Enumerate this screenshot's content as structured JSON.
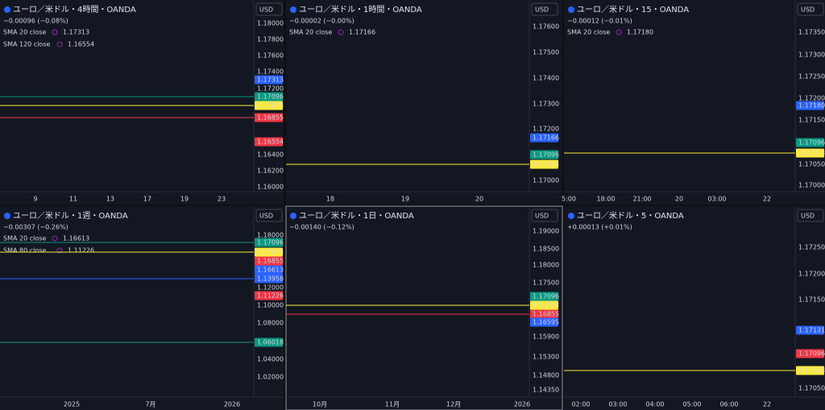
{
  "panels": [
    {
      "title": "ユーロ／米ドル・4時間・OANDA",
      "change": "−0.00096 (−0.08%)",
      "change_color": "#26a69a",
      "currency": "USD",
      "indicators": [
        {
          "label": "SMA 20 close",
          "value": "1.17313",
          "color": "#2962ff"
        },
        {
          "label": "SMA 120 close",
          "value": "1.16554",
          "color": "#f23645"
        }
      ],
      "price_axis": [
        "1.18000",
        "1.17800",
        "1.17600",
        "1.17400",
        "1.17200",
        "1.16400",
        "1.16200",
        "1.16000"
      ],
      "price_tags": [
        {
          "label": "1.17313",
          "color": "#2962ff"
        },
        {
          "label": "1.17096",
          "color": "#089981"
        },
        {
          "label": "1.17073",
          "color": "#ffeb3b"
        },
        {
          "label": "1.16855",
          "color": "#f23645"
        },
        {
          "label": "1.16554",
          "color": "#f23645"
        }
      ],
      "time_axis": [
        "9",
        "11",
        "13",
        "17",
        "19",
        "23"
      ]
    },
    {
      "title": "ユーロ／米ドル・1時間・OANDA",
      "change": "−0.00002 (−0.00%)",
      "change_color": "#26a69a",
      "currency": "USD",
      "indicators": [
        {
          "label": "SMA 20 close",
          "value": "1.17166",
          "color": "#2962ff"
        }
      ],
      "price_axis": [
        "1.17600",
        "1.17500",
        "1.17400",
        "1.17300",
        "1.17200",
        "1.17000"
      ],
      "price_tags": [
        {
          "label": "1.17166",
          "color": "#2962ff"
        },
        {
          "label": "1.17096",
          "color": "#089981"
        },
        {
          "label": "1.17073",
          "color": "#ffeb3b"
        }
      ],
      "time_axis": [
        "18",
        "19",
        "20"
      ]
    },
    {
      "title": "ユーロ／米ドル・15・OANDA",
      "change": "−0.00012 (−0.01%)",
      "change_color": "#26a69a",
      "currency": "USD",
      "indicators": [
        {
          "label": "SMA 20 close",
          "value": "1.17180",
          "color": "#2962ff"
        }
      ],
      "price_axis": [
        "1.17350",
        "1.17300",
        "1.17250",
        "1.17200",
        "1.17150",
        "1.17050",
        "1.17000"
      ],
      "price_tags": [
        {
          "label": "1.17180",
          "color": "#2962ff"
        },
        {
          "label": "1.17096",
          "color": "#089981"
        },
        {
          "label": "1.17073",
          "color": "#ffeb3b"
        }
      ],
      "time_axis": [
        "5:00",
        "18:00",
        "21:00",
        "20",
        "03:00",
        "22"
      ]
    },
    {
      "title": "ユーロ／米ドル・1週・OANDA",
      "change": "−0.00307 (−0.26%)",
      "change_color": "#26a69a",
      "currency": "USD",
      "indicators": [
        {
          "label": "SMA 20 close",
          "value": "1.16613",
          "color": "#2962ff"
        },
        {
          "label": "SMA 80 close",
          "value": "1.11226",
          "color": "#f23645"
        }
      ],
      "price_axis": [
        "1.18000",
        "1.12000",
        "1.10000",
        "1.08000",
        "1.04000",
        "1.02000"
      ],
      "price_tags": [
        {
          "label": "1.17096",
          "color": "#089981"
        },
        {
          "label": "1.17073",
          "color": "#ffeb3b"
        },
        {
          "label": "1.16855",
          "color": "#f23645"
        },
        {
          "label": "1.16613",
          "color": "#2962ff"
        },
        {
          "label": "1.13958",
          "color": "#2962ff"
        },
        {
          "label": "1.11226",
          "color": "#f23645"
        },
        {
          "label": "1.06018",
          "color": "#089981"
        }
      ],
      "time_axis": [
        "2025",
        "7月",
        "2026"
      ]
    },
    {
      "title": "ユーロ／米ドル・1日・OANDA",
      "change": "−0.00140 (−0.12%)",
      "change_color": "#26a69a",
      "currency": "USD",
      "indicators": [],
      "price_axis": [
        "1.19000",
        "1.18500",
        "1.18000",
        "1.17500",
        "1.15900",
        "1.15300",
        "1.14800",
        "1.14350"
      ],
      "price_tags": [
        {
          "label": "1.17096",
          "color": "#089981"
        },
        {
          "label": "1.17073",
          "color": "#ffeb3b"
        },
        {
          "label": "1.16855",
          "color": "#f23645"
        },
        {
          "label": "1.16595",
          "color": "#2962ff"
        }
      ],
      "time_axis": [
        "10月",
        "11月",
        "12月",
        "2026"
      ]
    },
    {
      "title": "ユーロ／米ドル・5・OANDA",
      "change": "+0.00013 (+0.01%)",
      "change_color": "#f23645",
      "currency": "USD",
      "indicators": [],
      "price_axis": [
        "1.17250",
        "1.17200",
        "1.17150",
        "1.17050"
      ],
      "price_tags": [
        {
          "label": "1.17131",
          "color": "#2962ff"
        },
        {
          "label": "1.17096",
          "color": "#f23645"
        },
        {
          "label": "1.17073",
          "color": "#ffeb3b"
        }
      ],
      "time_axis": [
        "02:00",
        "03:00",
        "04:00",
        "05:00",
        "06:00",
        "22"
      ]
    }
  ]
}
